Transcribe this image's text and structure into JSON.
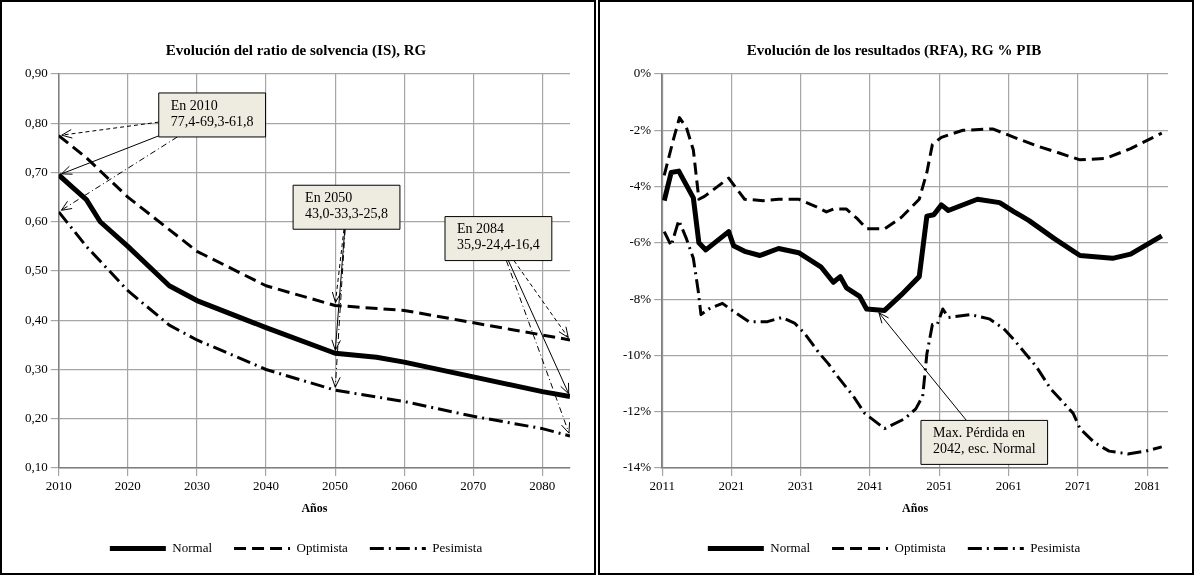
{
  "chart_data": [
    {
      "type": "line",
      "title": "Evolución del ratio de solvencia (IS), RG",
      "xlabel": "Años",
      "grid": true,
      "legend": "bottom",
      "marker": "none",
      "xlim": [
        2010,
        2084
      ],
      "xticks": [
        2010,
        2020,
        2030,
        2040,
        2050,
        2060,
        2070,
        2080
      ],
      "ylim": [
        0.1,
        0.9
      ],
      "yticks": [
        {
          "value": 0.1,
          "label": "0,10"
        },
        {
          "value": 0.2,
          "label": "0,20"
        },
        {
          "value": 0.3,
          "label": "0,30"
        },
        {
          "value": 0.4,
          "label": "0,40"
        },
        {
          "value": 0.5,
          "label": "0,50"
        },
        {
          "value": 0.6,
          "label": "0,60"
        },
        {
          "value": 0.7,
          "label": "0,70"
        },
        {
          "value": 0.8,
          "label": "0,80"
        },
        {
          "value": 0.9,
          "label": "0,90"
        }
      ],
      "series": [
        {
          "name": "Normal",
          "color": "#000000",
          "line_style": "solid",
          "x": [
            2010,
            2012,
            2014,
            2016,
            2020,
            2026,
            2030,
            2040,
            2050,
            2056,
            2060,
            2070,
            2080,
            2084
          ],
          "values": [
            0.695,
            0.67,
            0.645,
            0.6,
            0.55,
            0.47,
            0.44,
            0.385,
            0.333,
            0.325,
            0.315,
            0.285,
            0.255,
            0.245
          ]
        },
        {
          "name": "Optimista",
          "color": "#000000",
          "line_style": "dashed",
          "x": [
            2010,
            2014,
            2020,
            2030,
            2040,
            2045,
            2050,
            2060,
            2068,
            2080,
            2084
          ],
          "values": [
            0.775,
            0.73,
            0.65,
            0.54,
            0.47,
            0.45,
            0.43,
            0.42,
            0.4,
            0.37,
            0.36
          ]
        },
        {
          "name": "Pesimista",
          "color": "#000000",
          "line_style": "dashdot",
          "x": [
            2010,
            2014,
            2020,
            2026,
            2030,
            2040,
            2050,
            2060,
            2070,
            2080,
            2084
          ],
          "values": [
            0.62,
            0.55,
            0.46,
            0.39,
            0.36,
            0.3,
            0.258,
            0.235,
            0.205,
            0.18,
            0.165
          ]
        }
      ],
      "annotations": [
        {
          "text": "En 2010\n77,4-69,3-61,8",
          "x": 2010,
          "y": 0.695
        },
        {
          "text": "En 2050\n43,0-33,3-25,8",
          "x": 2050,
          "y": 0.333
        },
        {
          "text": "En 2084\n35,9-24,4-16,4",
          "x": 2084,
          "y": 0.245
        }
      ]
    },
    {
      "type": "line",
      "title": "Evolución de los resultados (RFA), RG % PIB",
      "xlabel": "Años",
      "grid": true,
      "legend": "bottom",
      "marker": "none",
      "xlim": [
        2011,
        2084
      ],
      "xticks": [
        2011,
        2021,
        2031,
        2041,
        2051,
        2061,
        2071,
        2081
      ],
      "ylim": [
        -14,
        0
      ],
      "yticks": [
        {
          "value": -14,
          "label": "-14%"
        },
        {
          "value": -12,
          "label": "-12%"
        },
        {
          "value": -10,
          "label": "-10%"
        },
        {
          "value": -8,
          "label": "-8%"
        },
        {
          "value": -6,
          "label": "-6%"
        },
        {
          "value": -4,
          "label": "-4%"
        },
        {
          "value": -2,
          "label": "-2%"
        },
        {
          "value": 0,
          "label": "0%"
        }
      ],
      "series": [
        {
          "name": "Normal",
          "color": "#000000",
          "line_style": "solid",
          "x": [
            2011.3,
            2012.3,
            2013.4,
            2015.5,
            2016.3,
            2017.3,
            2020.6,
            2021.3,
            2022.9,
            2025.1,
            2027.8,
            2030.7,
            2033.9,
            2035.7,
            2036.7,
            2037.6,
            2039.5,
            2040.5,
            2043.1,
            2045.5,
            2048.1,
            2049.2,
            2050.2,
            2051.3,
            2052.3,
            2056.5,
            2059.7,
            2061.8,
            2063.9,
            2067.6,
            2071.3,
            2076,
            2078.6,
            2083.1
          ],
          "values": [
            -4.5,
            -3.5,
            -3.45,
            -4.4,
            -6.0,
            -6.25,
            -5.6,
            -6.1,
            -6.3,
            -6.45,
            -6.2,
            -6.35,
            -6.85,
            -7.4,
            -7.2,
            -7.6,
            -7.9,
            -8.35,
            -8.4,
            -7.85,
            -7.2,
            -5.05,
            -5.0,
            -4.65,
            -4.85,
            -4.45,
            -4.57,
            -4.9,
            -5.2,
            -5.85,
            -6.45,
            -6.55,
            -6.4,
            -5.75
          ]
        },
        {
          "name": "Optimista",
          "color": "#000000",
          "line_style": "dashed",
          "x": [
            2011.3,
            2012.6,
            2013.5,
            2014.5,
            2015.5,
            2016.3,
            2017.1,
            2020.6,
            2022.9,
            2025.6,
            2027.8,
            2030.7,
            2033.1,
            2034.7,
            2035.7,
            2037.6,
            2039.2,
            2040.5,
            2043.1,
            2045.5,
            2048.1,
            2049.2,
            2050,
            2051.3,
            2054.4,
            2058.7,
            2061.8,
            2065,
            2068.2,
            2071.3,
            2075,
            2078.6,
            2083.1
          ],
          "values": [
            -3.6,
            -2.35,
            -1.55,
            -1.9,
            -2.7,
            -4.45,
            -4.35,
            -3.7,
            -4.45,
            -4.5,
            -4.45,
            -4.45,
            -4.7,
            -4.9,
            -4.8,
            -4.8,
            -5.15,
            -5.5,
            -5.5,
            -5.1,
            -4.45,
            -3.5,
            -2.5,
            -2.25,
            -2.0,
            -1.95,
            -2.25,
            -2.55,
            -2.8,
            -3.05,
            -3.0,
            -2.65,
            -2.1
          ]
        },
        {
          "name": "Pesimista",
          "color": "#000000",
          "line_style": "dashdot",
          "x": [
            2011.3,
            2012.3,
            2013.4,
            2014.5,
            2015.5,
            2016.2,
            2016.6,
            2017.7,
            2019.7,
            2021.1,
            2023.5,
            2026.2,
            2028.3,
            2030.1,
            2031.5,
            2033.6,
            2035,
            2036,
            2038.6,
            2040.2,
            2043.1,
            2046,
            2047.6,
            2048.6,
            2049.2,
            2050,
            2050.7,
            2051.5,
            2052.3,
            2055.5,
            2058.2,
            2060.3,
            2061.8,
            2065,
            2067.1,
            2070.3,
            2071.3,
            2073.4,
            2075.5,
            2078.2,
            2080.8,
            2083.1
          ],
          "values": [
            -5.6,
            -6.1,
            -5.2,
            -5.85,
            -6.55,
            -7.7,
            -8.55,
            -8.35,
            -8.15,
            -8.4,
            -8.8,
            -8.8,
            -8.65,
            -8.85,
            -9.2,
            -9.9,
            -10.3,
            -10.65,
            -11.45,
            -12.05,
            -12.6,
            -12.25,
            -11.9,
            -11.45,
            -9.95,
            -8.9,
            -8.9,
            -8.35,
            -8.65,
            -8.55,
            -8.7,
            -9.05,
            -9.45,
            -10.4,
            -11.2,
            -12.05,
            -12.6,
            -13.1,
            -13.4,
            -13.5,
            -13.4,
            -13.25
          ]
        }
      ],
      "annotations": [
        {
          "text": "Max. Pérdida en\n2042, esc. Normal",
          "x": 2042,
          "y": -8.4
        }
      ]
    }
  ]
}
